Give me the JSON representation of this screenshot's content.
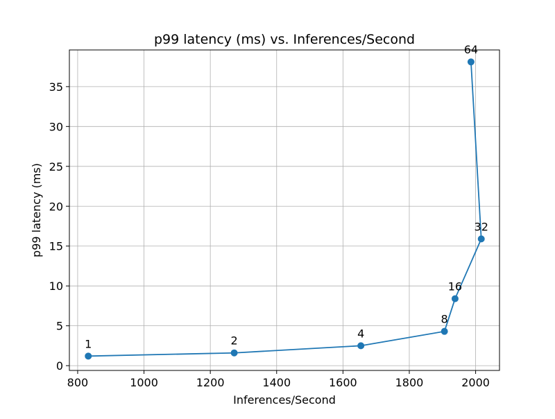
{
  "chart_data": {
    "type": "line",
    "title": "p99 latency (ms) vs. Inferences/Second",
    "xlabel": "Inferences/Second",
    "ylabel": "p99 latency (ms)",
    "xlim": [
      775,
      2072
    ],
    "ylim": [
      -0.6,
      39.6
    ],
    "xticks": [
      800,
      1000,
      1200,
      1400,
      1600,
      1800,
      2000
    ],
    "yticks": [
      0,
      5,
      10,
      15,
      20,
      25,
      30,
      35
    ],
    "grid": true,
    "series": [
      {
        "color": "#1f77b4",
        "marker": "circle",
        "points": [
          {
            "x": 832,
            "y": 1.2,
            "label": "1"
          },
          {
            "x": 1272,
            "y": 1.6,
            "label": "2"
          },
          {
            "x": 1654,
            "y": 2.5,
            "label": "4"
          },
          {
            "x": 1906,
            "y": 4.3,
            "label": "8"
          },
          {
            "x": 1938,
            "y": 8.4,
            "label": "16"
          },
          {
            "x": 2017,
            "y": 15.9,
            "label": "32"
          },
          {
            "x": 1986,
            "y": 38.1,
            "label": "64"
          }
        ]
      }
    ]
  }
}
